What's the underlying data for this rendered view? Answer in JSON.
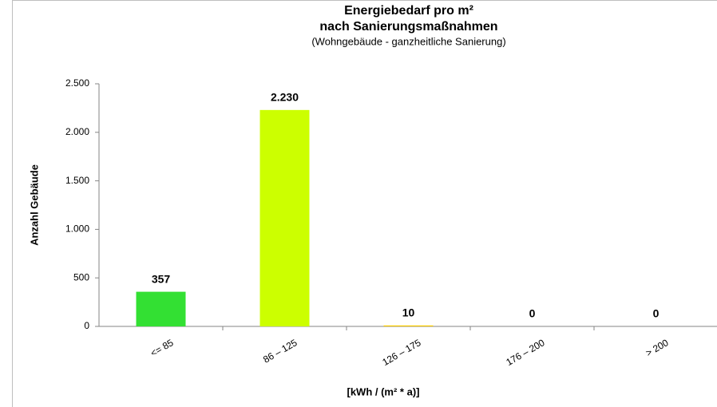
{
  "chart_data": {
    "type": "bar",
    "title": [
      "Energiebedarf pro m²",
      "nach Sanierungsmaßnahmen"
    ],
    "subtitle": "(Wohngebäude - ganzheitliche Sanierung)",
    "x_label": "[kWh / (m² * a)]",
    "y_label": "Anzahl Gebäude",
    "categories": [
      "<= 85",
      "86 – 125",
      "126 – 175",
      "176 – 200",
      "> 200"
    ],
    "values": [
      357,
      2230,
      10,
      0,
      0
    ],
    "value_labels": [
      "357",
      "2.230",
      "10",
      "0",
      "0"
    ],
    "colors": [
      "#33e033",
      "#ccff00",
      "#ffcc00",
      "#ff9900",
      "#ff3300"
    ],
    "ylim": [
      0,
      2500
    ],
    "yticks": [
      0,
      500,
      {
        "value": 1000,
        "label": "1.000"
      },
      {
        "value": 1500,
        "label": "1.500"
      },
      {
        "value": 2000,
        "label": "2.000"
      },
      {
        "value": 2500,
        "label": "2.500"
      }
    ],
    "grid": false
  }
}
